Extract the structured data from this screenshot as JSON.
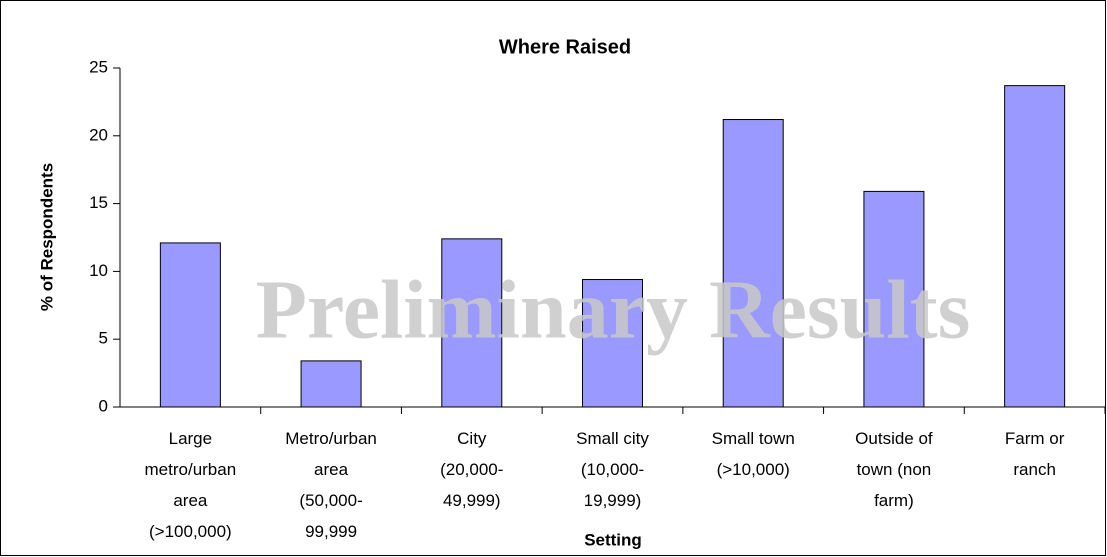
{
  "chart_data": {
    "type": "bar",
    "title": "Where Raised",
    "watermark": "Preliminary Results",
    "x_label": "Setting",
    "y_label": "% of Respondents",
    "categories": [
      "Large\nmetro/urban\narea\n(>100,000)",
      "Metro/urban\narea\n(50,000-\n99,999",
      "City\n(20,000-\n49,999)",
      "Small city\n(10,000-\n19,999)",
      "Small town\n(>10,000)",
      "Outside of\ntown (non\nfarm)",
      "Farm or\nranch"
    ],
    "values": [
      12.1,
      3.4,
      12.4,
      9.4,
      21.2,
      15.9,
      23.7
    ],
    "color": "#9999ff",
    "ylim": [
      0,
      25
    ],
    "yticks": [
      0,
      5,
      10,
      15,
      20,
      25
    ],
    "grid": false
  }
}
